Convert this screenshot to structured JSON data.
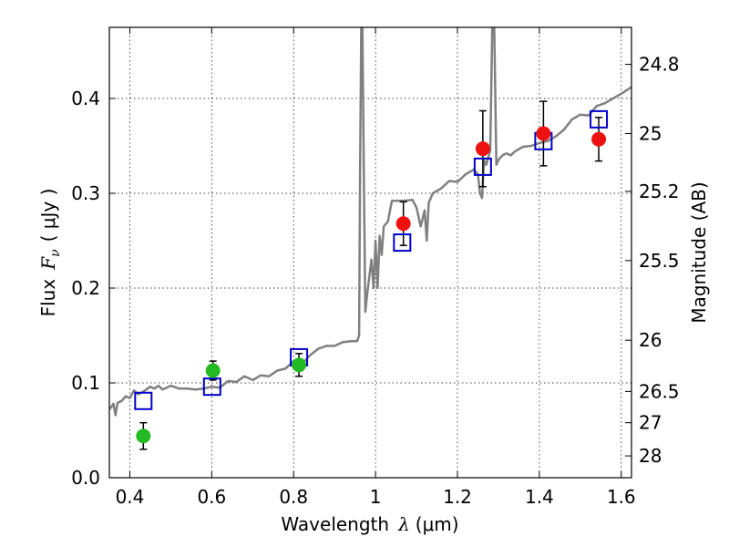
{
  "chart_data": {
    "type": "scatter",
    "xlabel": {
      "text": "Wavelength",
      "symbol": "λ",
      "unit": "(μm)"
    },
    "ylabel": {
      "text": "Flux",
      "symbol": "F",
      "subscript": "ν",
      "unit": "( μJy )"
    },
    "y2label": "Magnitude (AB)",
    "xlim": [
      0.35,
      1.625
    ],
    "ylim": [
      0.0,
      0.475
    ],
    "grid": true,
    "x_ticks": [
      0.4,
      0.6,
      0.8,
      1.0,
      1.2,
      1.4,
      1.6
    ],
    "x_tick_labels": [
      "0.4",
      "0.6",
      "0.8",
      "1",
      "1.2",
      "1.4",
      "1.6"
    ],
    "y_ticks": [
      0.0,
      0.1,
      0.2,
      0.3,
      0.4
    ],
    "y_tick_labels": [
      "0.0",
      "0.1",
      "0.2",
      "0.3",
      "0.4"
    ],
    "y2_ticks": [
      {
        "label": "24.8",
        "flux": 0.436
      },
      {
        "label": "25",
        "flux": 0.363
      },
      {
        "label": "25.2",
        "flux": 0.302
      },
      {
        "label": "25.5",
        "flux": 0.229
      },
      {
        "label": "26",
        "flux": 0.145
      },
      {
        "label": "26.5",
        "flux": 0.091
      },
      {
        "label": "27",
        "flux": 0.058
      },
      {
        "label": "28",
        "flux": 0.023
      }
    ],
    "series": [
      {
        "kind": "line",
        "color": "#808080",
        "x": [
          0.35,
          0.36,
          0.365,
          0.37,
          0.38,
          0.39,
          0.4,
          0.41,
          0.42,
          0.43,
          0.44,
          0.45,
          0.46,
          0.47,
          0.48,
          0.5,
          0.52,
          0.54,
          0.56,
          0.58,
          0.6,
          0.62,
          0.64,
          0.66,
          0.68,
          0.7,
          0.72,
          0.74,
          0.76,
          0.78,
          0.8,
          0.82,
          0.84,
          0.86,
          0.88,
          0.9,
          0.92,
          0.94,
          0.955,
          0.96,
          0.962,
          0.965,
          0.968,
          0.972,
          0.975,
          0.98,
          0.99,
          0.995,
          1.0,
          1.005,
          1.01,
          1.015,
          1.02,
          1.03,
          1.04,
          1.05,
          1.07,
          1.09,
          1.1,
          1.11,
          1.12,
          1.125,
          1.13,
          1.14,
          1.16,
          1.18,
          1.2,
          1.22,
          1.24,
          1.25,
          1.255,
          1.26,
          1.265,
          1.27,
          1.28,
          1.285,
          1.29,
          1.295,
          1.3,
          1.31,
          1.32,
          1.33,
          1.34,
          1.36,
          1.38,
          1.4,
          1.42,
          1.44,
          1.46,
          1.48,
          1.5,
          1.52,
          1.54,
          1.56,
          1.58,
          1.6,
          1.625
        ],
        "y": [
          0.072,
          0.078,
          0.066,
          0.079,
          0.081,
          0.086,
          0.084,
          0.092,
          0.088,
          0.09,
          0.093,
          0.096,
          0.094,
          0.097,
          0.093,
          0.097,
          0.094,
          0.094,
          0.093,
          0.094,
          0.096,
          0.095,
          0.102,
          0.101,
          0.107,
          0.103,
          0.108,
          0.107,
          0.113,
          0.115,
          0.123,
          0.12,
          0.129,
          0.136,
          0.139,
          0.139,
          0.143,
          0.144,
          0.144,
          0.15,
          0.3,
          0.475,
          0.475,
          0.3,
          0.175,
          0.195,
          0.23,
          0.2,
          0.25,
          0.2,
          0.255,
          0.235,
          0.265,
          0.27,
          0.292,
          0.292,
          0.292,
          0.293,
          0.285,
          0.265,
          0.282,
          0.25,
          0.29,
          0.3,
          0.305,
          0.313,
          0.312,
          0.32,
          0.325,
          0.32,
          0.3,
          0.295,
          0.335,
          0.33,
          0.345,
          0.475,
          0.475,
          0.33,
          0.335,
          0.34,
          0.342,
          0.34,
          0.344,
          0.349,
          0.35,
          0.353,
          0.355,
          0.36,
          0.367,
          0.378,
          0.383,
          0.382,
          0.392,
          0.395,
          0.4,
          0.405,
          0.412
        ]
      },
      {
        "kind": "markers",
        "marker": "square",
        "color": "#0000cc",
        "x": [
          0.433,
          0.601,
          0.813,
          1.065,
          1.262,
          1.41,
          1.545
        ],
        "y": [
          0.081,
          0.096,
          0.127,
          0.248,
          0.328,
          0.355,
          0.378
        ]
      },
      {
        "kind": "markers",
        "marker": "circle",
        "color": "#22bb22",
        "x": [
          0.433,
          0.603,
          0.813
        ],
        "y": [
          0.044,
          0.113,
          0.119
        ],
        "yerr": [
          0.014,
          0.01,
          0.012
        ]
      },
      {
        "kind": "markers",
        "marker": "circle",
        "color": "#ee1111",
        "x": [
          1.068,
          1.262,
          1.41,
          1.545
        ],
        "y": [
          0.268,
          0.347,
          0.363,
          0.357
        ],
        "yerr": [
          0.023,
          0.04,
          0.034,
          0.023
        ]
      }
    ]
  }
}
